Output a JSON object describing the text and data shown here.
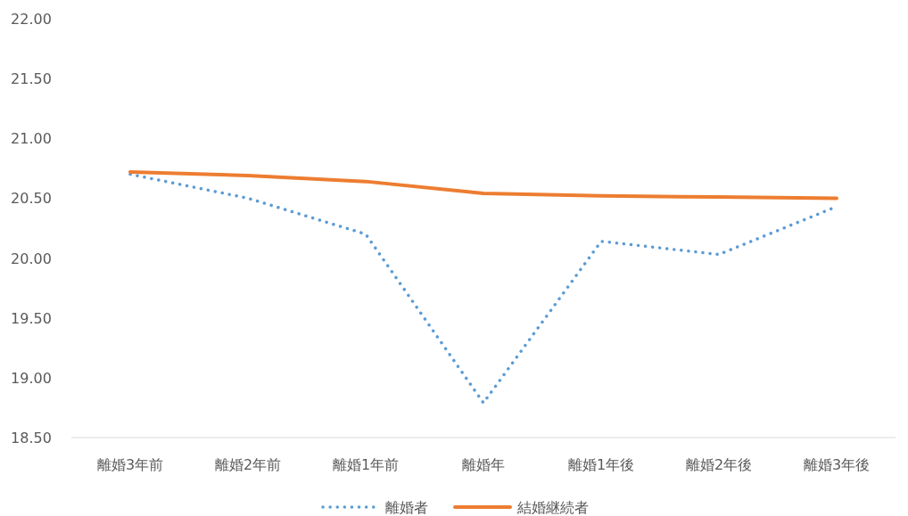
{
  "chart_data": {
    "type": "line",
    "categories": [
      "離婚3年前",
      "離婚2年前",
      "離婚1年前",
      "離婚年",
      "離婚1年後",
      "離婚2年後",
      "離婚3年後"
    ],
    "series": [
      {
        "name": "離婚者",
        "color": "#5b9bd5",
        "line_style": "dotted",
        "values": [
          20.7,
          20.5,
          20.2,
          18.79,
          20.14,
          20.03,
          20.43
        ]
      },
      {
        "name": "結婚継続者",
        "color": "#ed7d31",
        "line_style": "solid",
        "values": [
          20.72,
          20.69,
          20.64,
          20.54,
          20.52,
          20.51,
          20.5
        ]
      }
    ],
    "ylim": [
      18.5,
      22
    ],
    "yticks": [
      {
        "value": 18.5,
        "label": "18.50"
      },
      {
        "value": 19,
        "label": "19.00"
      },
      {
        "value": 19.5,
        "label": "19.50"
      },
      {
        "value": 20,
        "label": "20.00"
      },
      {
        "value": 20.5,
        "label": "20.50"
      },
      {
        "value": 21,
        "label": "21.00"
      },
      {
        "value": 21.5,
        "label": "21.50"
      },
      {
        "value": 22,
        "label": "22.00"
      }
    ],
    "grid": false,
    "legend": "bottom",
    "marker": "none"
  }
}
